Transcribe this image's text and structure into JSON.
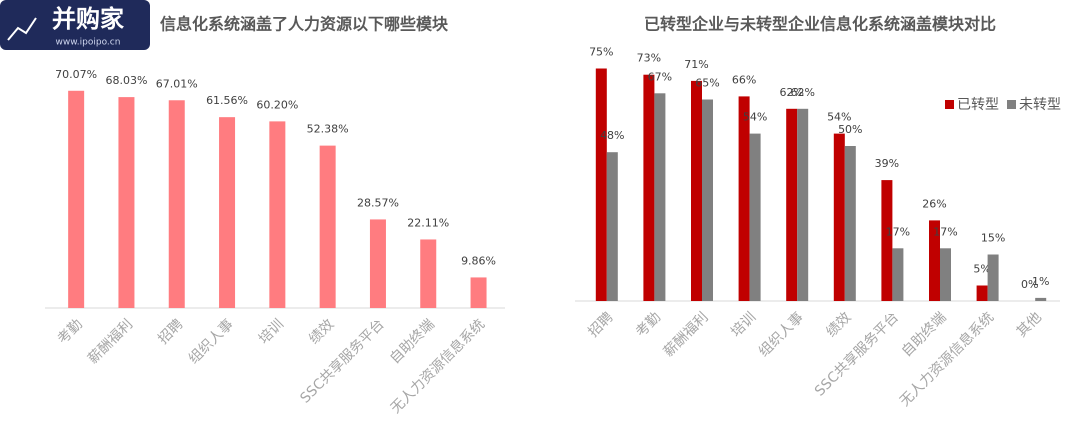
{
  "chart_data": [
    {
      "type": "bar",
      "title": "信息化系统涵盖了人力资源以下哪些模块",
      "categories": [
        "考勤",
        "薪酬福利",
        "招聘",
        "组织人事",
        "培训",
        "绩效",
        "SSC共享服务平台",
        "自助终端",
        "无人力资源信息系统"
      ],
      "values": [
        70.07,
        68.03,
        67.01,
        61.56,
        60.2,
        52.38,
        28.57,
        22.11,
        9.86
      ],
      "value_labels": [
        "70.07%",
        "68.03%",
        "67.01%",
        "61.56%",
        "60.20%",
        "52.38%",
        "28.57%",
        "22.11%",
        "9.86%"
      ],
      "color": "#ff7c80"
    },
    {
      "type": "grouped_bar",
      "title": "已转型企业与未转型企业信息化系统涵盖模块对比",
      "categories": [
        "招聘",
        "考勤",
        "薪酬福利",
        "培训",
        "组织人事",
        "绩效",
        "SSC共享服务平台",
        "自助终端",
        "无人力资源信息系统",
        "其他"
      ],
      "series": [
        {
          "name": "已转型",
          "color": "#c00000",
          "values": [
            75,
            73,
            71,
            66,
            62,
            54,
            39,
            26,
            5,
            0
          ],
          "value_labels": [
            "75%",
            "73%",
            "71%",
            "66%",
            "62%",
            "54%",
            "39%",
            "26%",
            "5%",
            "0%"
          ]
        },
        {
          "name": "未转型",
          "color": "#808080",
          "values": [
            48,
            67,
            65,
            54,
            62,
            50,
            17,
            17,
            15,
            1
          ],
          "value_labels": [
            "48%",
            "67%",
            "65%",
            "54%",
            "62%",
            "50%",
            "17%",
            "17%",
            "15%",
            "1%"
          ]
        }
      ],
      "legend": "right"
    }
  ],
  "watermark": {
    "brand": "并购家",
    "url": "www.ipoipo.cn"
  }
}
